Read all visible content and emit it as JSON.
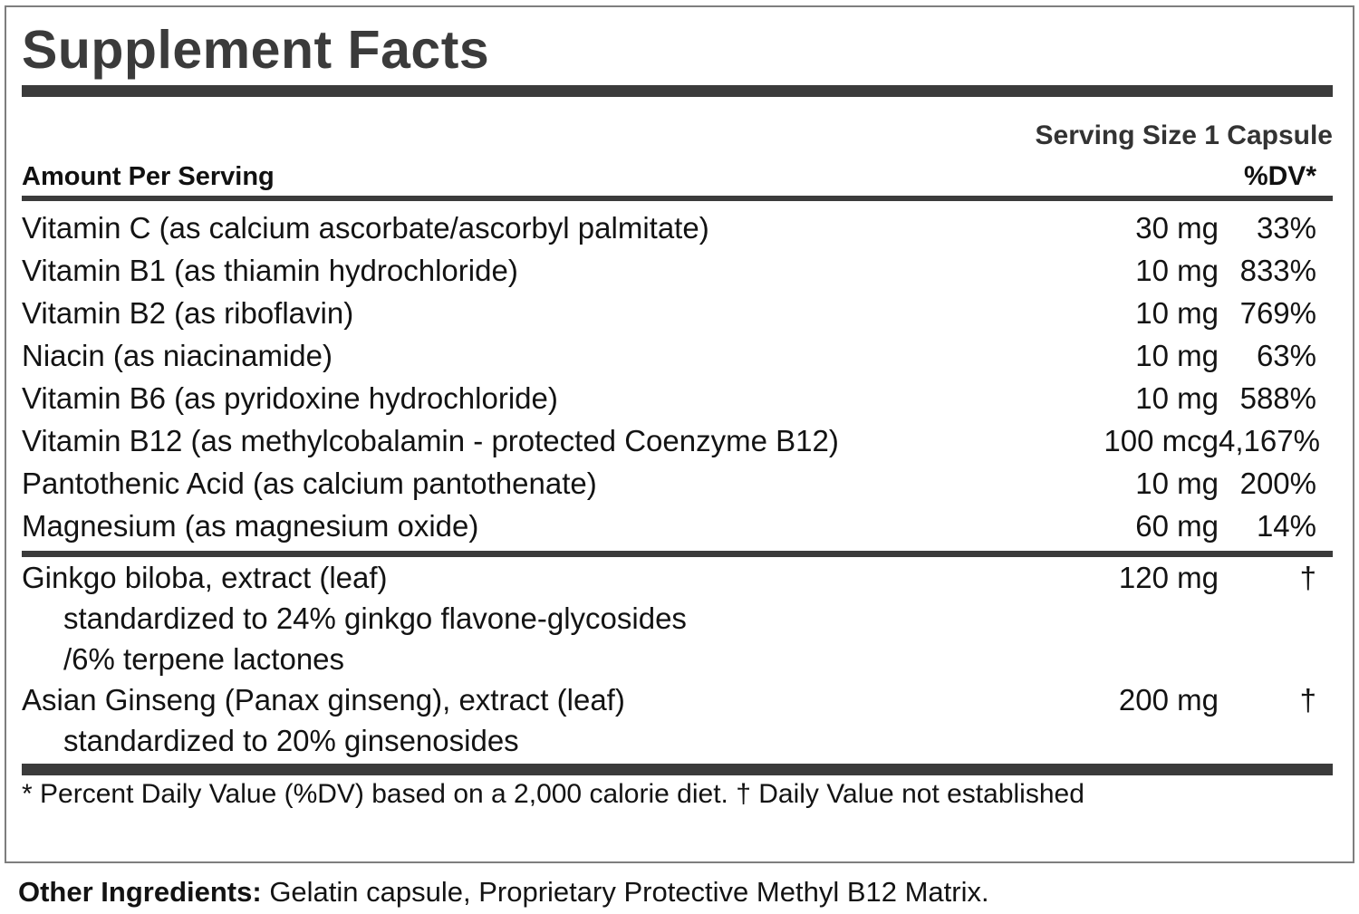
{
  "label": {
    "title": "Supplement Facts",
    "serving_size": "Serving Size 1 Capsule",
    "columns": {
      "amount_header": "Amount Per Serving",
      "dv_header": "%DV*"
    },
    "rows": [
      {
        "name": "Vitamin C (as calcium ascorbate/ascorbyl palmitate)",
        "amount": "30 mg",
        "dv": "33%"
      },
      {
        "name": "Vitamin B1 (as thiamin hydrochloride)",
        "amount": "10 mg",
        "dv": "833%"
      },
      {
        "name": "Vitamin B2 (as riboflavin)",
        "amount": "10 mg",
        "dv": "769%"
      },
      {
        "name": "Niacin (as niacinamide)",
        "amount": "10 mg",
        "dv": "63%"
      },
      {
        "name": "Vitamin B6 (as pyridoxine hydrochloride)",
        "amount": "10 mg",
        "dv": "588%"
      },
      {
        "name": "Vitamin B12 (as methylcobalamin - protected Coenzyme B12)",
        "amount": "100 mcg",
        "dv": "4,167%"
      },
      {
        "name": "Pantothenic Acid (as calcium pantothenate)",
        "amount": "10 mg",
        "dv": "200%"
      },
      {
        "name": "Magnesium (as magnesium oxide)",
        "amount": "60 mg",
        "dv": "14%"
      }
    ],
    "botanicals": [
      {
        "name": "Ginkgo biloba, extract (leaf)",
        "amount": "120 mg",
        "dv": "†",
        "sub": [
          "standardized to 24% ginkgo flavone-glycosides",
          "/6% terpene lactones"
        ]
      },
      {
        "name": "Asian Ginseng (Panax ginseng), extract (leaf)",
        "amount": "200 mg",
        "dv": "†",
        "sub": [
          "standardized to 20% ginsenosides"
        ]
      }
    ],
    "footnote": "* Percent Daily Value (%DV) based on a 2,000 calorie diet. † Daily Value not established",
    "other_ingredients": {
      "label": "Other Ingredients:",
      "text": " Gelatin capsule, Proprietary Protective Methyl B12 Matrix."
    },
    "colors": {
      "rule": "#3b3b3b",
      "title": "#3b3b3b",
      "border": "#7e7e7e",
      "text": "#131313"
    }
  }
}
